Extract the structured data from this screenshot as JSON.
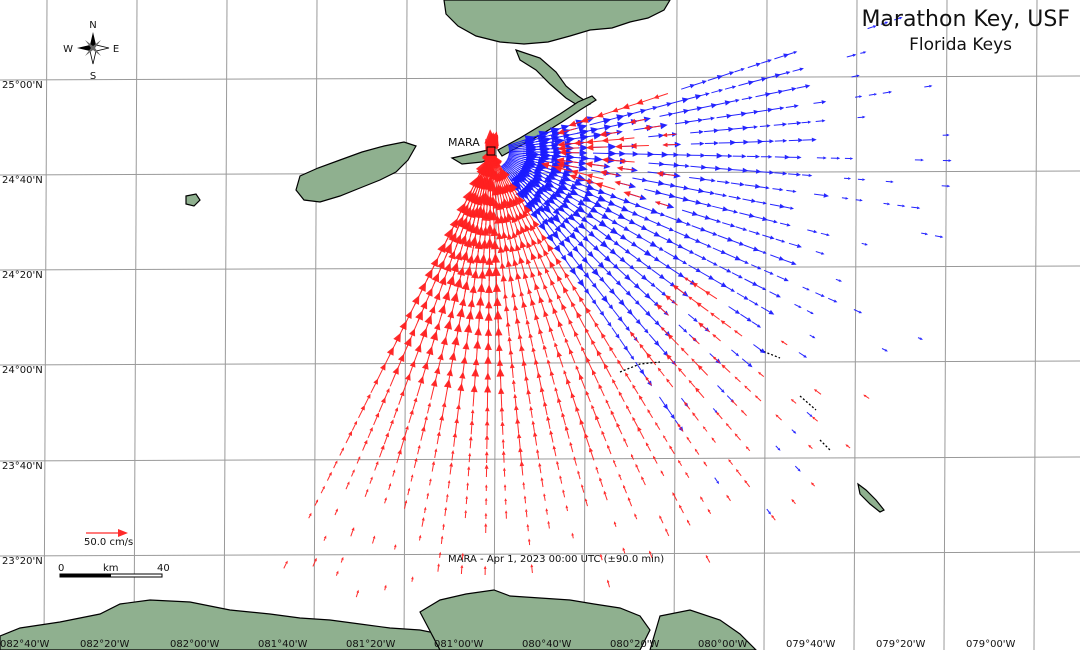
{
  "title": "Marathon Key, USF",
  "subtitle": "Florida Keys",
  "site_label": "MARA",
  "timestamp": "MARA - Apr 1, 2023 00:00 UTC (±90.0 min)",
  "compass": {
    "n": "N",
    "s": "S",
    "e": "E",
    "w": "W"
  },
  "lat_labels": [
    "25°00'N",
    "24°40'N",
    "24°20'N",
    "24°00'N",
    "23°40'N",
    "23°20'N"
  ],
  "lon_labels": [
    "082°40'W",
    "082°20'W",
    "082°00'W",
    "081°40'W",
    "081°20'W",
    "081°00'W",
    "080°40'W",
    "080°20'W",
    "080°00'W",
    "079°40'W",
    "079°20'W",
    "079°00'W"
  ],
  "velocity_scale": {
    "label": "50.0 cm/s",
    "color": "#ff2a2a"
  },
  "distance_scale": {
    "start": "0",
    "mid": "km",
    "end": "40"
  },
  "colors": {
    "toward": "#ff2020",
    "away": "#1a1aff",
    "land": "#8fb08f",
    "grid": "#9a9a9a"
  }
}
